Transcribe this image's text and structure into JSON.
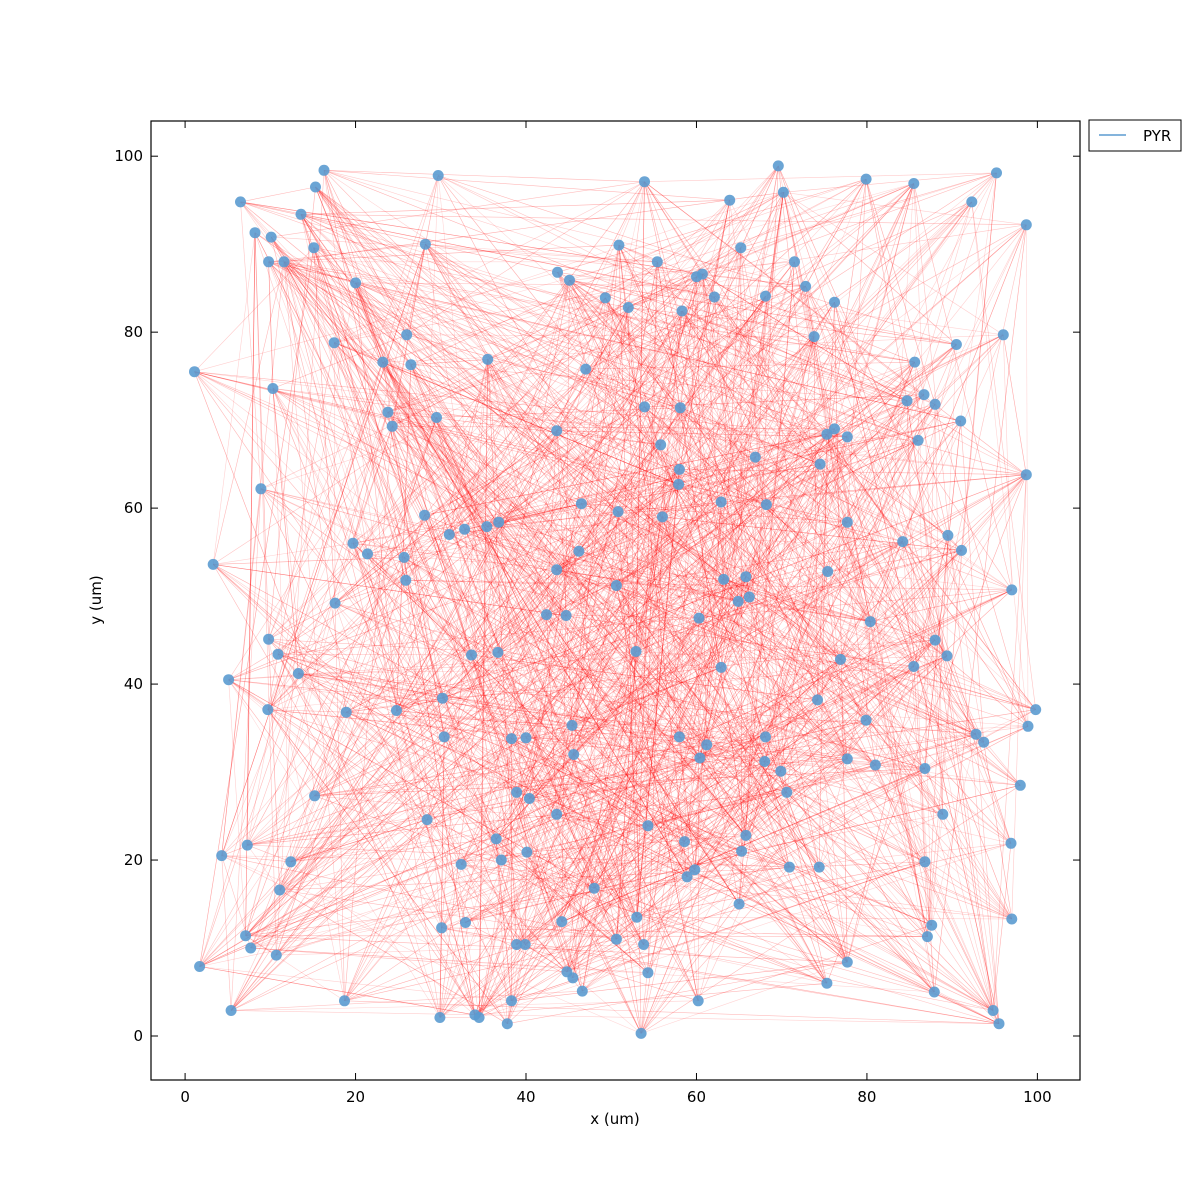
{
  "chart_data": {
    "type": "scatter",
    "title": "",
    "xlabel": "x (um)",
    "ylabel": "y (um)",
    "xlim": [
      -4,
      105
    ],
    "ylim": [
      104,
      -5
    ],
    "y_axis_inverted": true,
    "xticks": [
      0,
      20,
      40,
      60,
      80,
      100
    ],
    "yticks": [
      0,
      20,
      40,
      60,
      80,
      100
    ],
    "grid": false,
    "legend": {
      "placement": "outside-top-right",
      "entries": [
        "PYR"
      ]
    },
    "colors": {
      "points": "#5b9bd0",
      "connections": "#ff0000",
      "legend_line": "#5b9bd0"
    },
    "connections_note": "dense random directed connections between cells",
    "series": [
      {
        "name": "PYR",
        "points": [
          [
            53.5,
            0.3
          ],
          [
            95.5,
            1.4
          ],
          [
            37.8,
            1.4
          ],
          [
            29.9,
            2.1
          ],
          [
            34.5,
            2.1
          ],
          [
            34.0,
            2.4
          ],
          [
            5.4,
            2.9
          ],
          [
            94.8,
            2.9
          ],
          [
            18.7,
            4.0
          ],
          [
            38.3,
            4.0
          ],
          [
            60.2,
            4.0
          ],
          [
            87.9,
            5.0
          ],
          [
            46.6,
            5.1
          ],
          [
            75.3,
            6.0
          ],
          [
            45.5,
            6.6
          ],
          [
            54.3,
            7.2
          ],
          [
            44.8,
            7.3
          ],
          [
            1.7,
            7.9
          ],
          [
            77.7,
            8.4
          ],
          [
            10.7,
            9.2
          ],
          [
            7.7,
            10.0
          ],
          [
            38.9,
            10.4
          ],
          [
            39.9,
            10.4
          ],
          [
            53.8,
            10.4
          ],
          [
            50.6,
            11.0
          ],
          [
            87.1,
            11.3
          ],
          [
            7.1,
            11.4
          ],
          [
            87.6,
            12.6
          ],
          [
            30.1,
            12.3
          ],
          [
            32.9,
            12.9
          ],
          [
            44.2,
            13.0
          ],
          [
            53.0,
            13.5
          ],
          [
            97.0,
            13.3
          ],
          [
            65.0,
            15.0
          ],
          [
            11.1,
            16.6
          ],
          [
            48.0,
            16.8
          ],
          [
            58.9,
            18.1
          ],
          [
            59.8,
            18.9
          ],
          [
            70.9,
            19.2
          ],
          [
            74.4,
            19.2
          ],
          [
            32.4,
            19.5
          ],
          [
            12.4,
            19.8
          ],
          [
            37.1,
            20.0
          ],
          [
            86.8,
            19.8
          ],
          [
            4.3,
            20.5
          ],
          [
            40.1,
            20.9
          ],
          [
            65.3,
            21.0
          ],
          [
            7.3,
            21.7
          ],
          [
            58.6,
            22.1
          ],
          [
            96.9,
            21.9
          ],
          [
            36.5,
            22.4
          ],
          [
            65.8,
            22.8
          ],
          [
            54.3,
            23.9
          ],
          [
            28.4,
            24.6
          ],
          [
            88.9,
            25.2
          ],
          [
            43.6,
            25.2
          ],
          [
            40.4,
            27.0
          ],
          [
            15.2,
            27.3
          ],
          [
            38.9,
            27.7
          ],
          [
            70.6,
            27.7
          ],
          [
            98.0,
            28.5
          ],
          [
            69.9,
            30.1
          ],
          [
            86.8,
            30.4
          ],
          [
            81.0,
            30.8
          ],
          [
            68.0,
            31.2
          ],
          [
            77.7,
            31.5
          ],
          [
            60.4,
            31.6
          ],
          [
            45.6,
            32.0
          ],
          [
            61.2,
            33.1
          ],
          [
            93.7,
            33.4
          ],
          [
            38.3,
            33.8
          ],
          [
            40.0,
            33.9
          ],
          [
            30.4,
            34.0
          ],
          [
            58.0,
            34.0
          ],
          [
            68.1,
            34.0
          ],
          [
            92.8,
            34.3
          ],
          [
            98.9,
            35.2
          ],
          [
            45.4,
            35.3
          ],
          [
            79.9,
            35.9
          ],
          [
            9.7,
            37.1
          ],
          [
            18.9,
            36.8
          ],
          [
            24.8,
            37.0
          ],
          [
            99.8,
            37.1
          ],
          [
            74.2,
            38.2
          ],
          [
            30.2,
            38.4
          ],
          [
            5.1,
            40.5
          ],
          [
            13.3,
            41.2
          ],
          [
            62.9,
            41.9
          ],
          [
            85.5,
            42.0
          ],
          [
            76.9,
            42.8
          ],
          [
            10.9,
            43.4
          ],
          [
            33.6,
            43.3
          ],
          [
            36.7,
            43.6
          ],
          [
            52.9,
            43.7
          ],
          [
            89.4,
            43.2
          ],
          [
            9.8,
            45.1
          ],
          [
            88.0,
            45.0
          ],
          [
            80.4,
            47.1
          ],
          [
            60.3,
            47.5
          ],
          [
            42.4,
            47.9
          ],
          [
            44.7,
            47.8
          ],
          [
            17.6,
            49.2
          ],
          [
            64.9,
            49.4
          ],
          [
            66.2,
            49.9
          ],
          [
            50.6,
            51.2
          ],
          [
            97.0,
            50.7
          ],
          [
            25.9,
            51.8
          ],
          [
            63.2,
            51.9
          ],
          [
            65.8,
            52.2
          ],
          [
            75.4,
            52.8
          ],
          [
            43.6,
            53.0
          ],
          [
            3.3,
            53.6
          ],
          [
            21.4,
            54.8
          ],
          [
            25.7,
            54.4
          ],
          [
            46.2,
            55.1
          ],
          [
            91.1,
            55.2
          ],
          [
            19.7,
            56.0
          ],
          [
            84.2,
            56.2
          ],
          [
            89.5,
            56.9
          ],
          [
            31.0,
            57.0
          ],
          [
            32.8,
            57.6
          ],
          [
            35.4,
            57.9
          ],
          [
            36.8,
            58.4
          ],
          [
            77.7,
            58.4
          ],
          [
            56.0,
            59.0
          ],
          [
            28.1,
            59.2
          ],
          [
            50.8,
            59.6
          ],
          [
            46.5,
            60.5
          ],
          [
            68.2,
            60.4
          ],
          [
            62.9,
            60.7
          ],
          [
            8.9,
            62.2
          ],
          [
            57.9,
            62.7
          ],
          [
            58.0,
            64.4
          ],
          [
            98.7,
            63.8
          ],
          [
            74.5,
            65.0
          ],
          [
            66.9,
            65.8
          ],
          [
            55.8,
            67.2
          ],
          [
            86.0,
            67.7
          ],
          [
            77.7,
            68.1
          ],
          [
            75.3,
            68.4
          ],
          [
            76.2,
            69.0
          ],
          [
            24.3,
            69.3
          ],
          [
            43.6,
            68.8
          ],
          [
            91.0,
            69.9
          ],
          [
            29.5,
            70.3
          ],
          [
            23.8,
            70.9
          ],
          [
            53.9,
            71.5
          ],
          [
            58.1,
            71.4
          ],
          [
            88.0,
            71.8
          ],
          [
            84.7,
            72.2
          ],
          [
            86.7,
            72.9
          ],
          [
            10.3,
            73.6
          ],
          [
            1.1,
            75.5
          ],
          [
            47.0,
            75.8
          ],
          [
            26.5,
            76.3
          ],
          [
            23.2,
            76.6
          ],
          [
            85.6,
            76.6
          ],
          [
            35.5,
            76.9
          ],
          [
            90.5,
            78.6
          ],
          [
            17.5,
            78.8
          ],
          [
            26.0,
            79.7
          ],
          [
            73.8,
            79.5
          ],
          [
            96.0,
            79.7
          ],
          [
            58.3,
            82.4
          ],
          [
            52.0,
            82.8
          ],
          [
            76.2,
            83.4
          ],
          [
            49.3,
            83.9
          ],
          [
            62.1,
            84.0
          ],
          [
            68.1,
            84.1
          ],
          [
            72.8,
            85.2
          ],
          [
            20.0,
            85.6
          ],
          [
            45.1,
            85.9
          ],
          [
            43.7,
            86.8
          ],
          [
            60.0,
            86.3
          ],
          [
            60.7,
            86.6
          ],
          [
            9.8,
            88.0
          ],
          [
            11.6,
            88.0
          ],
          [
            55.4,
            88.0
          ],
          [
            71.5,
            88.0
          ],
          [
            65.2,
            89.6
          ],
          [
            15.1,
            89.6
          ],
          [
            28.2,
            90.0
          ],
          [
            50.9,
            89.9
          ],
          [
            10.1,
            90.8
          ],
          [
            8.2,
            91.3
          ],
          [
            98.7,
            92.2
          ],
          [
            13.6,
            93.4
          ],
          [
            6.5,
            94.8
          ],
          [
            92.3,
            94.8
          ],
          [
            63.9,
            95.0
          ],
          [
            70.2,
            95.9
          ],
          [
            15.3,
            96.5
          ],
          [
            53.9,
            97.1
          ],
          [
            85.5,
            96.9
          ],
          [
            79.9,
            97.4
          ],
          [
            29.7,
            97.8
          ],
          [
            95.2,
            98.1
          ],
          [
            16.3,
            98.4
          ],
          [
            69.6,
            98.9
          ]
        ]
      }
    ]
  }
}
